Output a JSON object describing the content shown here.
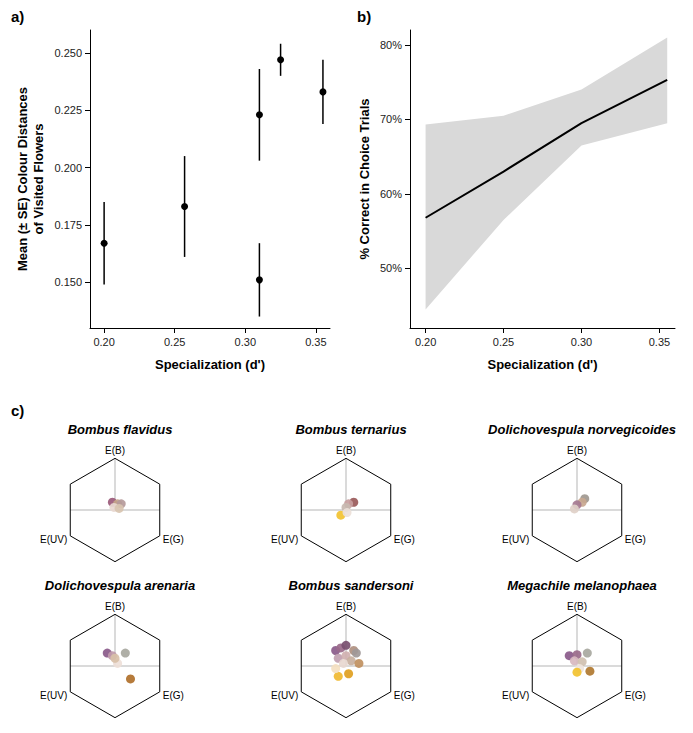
{
  "chart_data": [
    {
      "type": "scatter",
      "panel_label": "a)",
      "x": [
        0.2,
        0.257,
        0.31,
        0.31,
        0.325,
        0.355
      ],
      "y": [
        0.167,
        0.183,
        0.223,
        0.151,
        0.247,
        0.233
      ],
      "se": [
        0.018,
        0.022,
        0.02,
        0.016,
        0.007,
        0.014
      ],
      "color": "#000000",
      "marker": "circle",
      "xlabel": "Specialization (d')",
      "ylabel": "Mean (± SE) Colour Distances of Visited Flowers",
      "xlim": [
        0.19,
        0.36
      ],
      "ylim": [
        0.13,
        0.26
      ],
      "xticks": [
        {
          "value": 0.2,
          "label": "0.20"
        },
        {
          "value": 0.25,
          "label": "0.25"
        },
        {
          "value": 0.3,
          "label": "0.30"
        },
        {
          "value": 0.35,
          "label": "0.35"
        }
      ],
      "yticks": [
        {
          "value": 0.15,
          "label": "0.150"
        },
        {
          "value": 0.175,
          "label": "0.175"
        },
        {
          "value": 0.2,
          "label": "0.200"
        },
        {
          "value": 0.225,
          "label": "0.225"
        },
        {
          "value": 0.25,
          "label": "0.250"
        }
      ],
      "grid": false
    },
    {
      "type": "line",
      "panel_label": "b)",
      "x": [
        0.2,
        0.25,
        0.3,
        0.355
      ],
      "values": [
        56.8,
        63,
        69.5,
        75.3
      ],
      "lower": [
        44.5,
        56.5,
        66.5,
        69.5
      ],
      "upper": [
        69.3,
        70.5,
        74,
        81
      ],
      "color": "#000000",
      "marker": "none",
      "line_style": "solid",
      "xlabel": "Specialization (d')",
      "ylabel": "% Correct in Choice Trials",
      "xlim": [
        0.19,
        0.36
      ],
      "ylim": [
        42,
        82
      ],
      "xticks": [
        {
          "value": 0.2,
          "label": "0.20"
        },
        {
          "value": 0.25,
          "label": "0.25"
        },
        {
          "value": 0.3,
          "label": "0.30"
        },
        {
          "value": 0.35,
          "label": "0.35"
        }
      ],
      "yticks": [
        {
          "value": 50,
          "label": "50%"
        },
        {
          "value": 60,
          "label": "60%"
        },
        {
          "value": 70,
          "label": "70%"
        },
        {
          "value": 80,
          "label": "80%"
        }
      ],
      "grid": false
    },
    {
      "type": "hexagon",
      "panel_label": "c)",
      "title": "Bombus flavidus",
      "annotations": [
        "E(B)",
        "E(UV)",
        "E(G)"
      ],
      "x": [
        -0.05,
        0.05,
        0.12,
        -0.02,
        0.08
      ],
      "y": [
        0.15,
        0.12,
        0.12,
        0.05,
        0.03
      ],
      "colors": [
        "#9b5a7a",
        "#c4a58a",
        "#b59a9a",
        "#e8d8d0",
        "#d8c4b0"
      ],
      "marker": "circle",
      "xlim": [
        -1.2,
        1.2
      ],
      "ylim": [
        -1.2,
        1.2
      ],
      "tick_labels": false
    },
    {
      "type": "hexagon",
      "title": "Bombus ternarius",
      "annotations": [
        "E(B)",
        "E(UV)",
        "E(G)"
      ],
      "x": [
        0.15,
        0.05,
        0.0,
        -0.1,
        0.02
      ],
      "y": [
        0.15,
        0.12,
        0.05,
        -0.1,
        -0.05
      ],
      "colors": [
        "#9a5a5a",
        "#c8a0a0",
        "#c8b8b0",
        "#f2c230",
        "#ece0d8"
      ],
      "marker": "circle",
      "xlim": [
        -1.2,
        1.2
      ],
      "ylim": [
        -1.2,
        1.2
      ],
      "tick_labels": false
    },
    {
      "type": "hexagon",
      "title": "Dolichovespula norvegicoides",
      "annotations": [
        "E(B)",
        "E(UV)",
        "E(G)"
      ],
      "x": [
        0.15,
        0.1,
        0.0,
        -0.05
      ],
      "y": [
        0.22,
        0.15,
        0.1,
        0.02
      ],
      "colors": [
        "#a09890",
        "#c9a890",
        "#a57890",
        "#e0d0c8"
      ],
      "marker": "circle",
      "xlim": [
        -1.2,
        1.2
      ],
      "ylim": [
        -1.2,
        1.2
      ],
      "tick_labels": false
    },
    {
      "type": "hexagon",
      "title": "Dolichovespula arenaria",
      "annotations": [
        "E(B)",
        "E(UV)",
        "E(G)"
      ],
      "x": [
        -0.15,
        -0.05,
        0.2,
        0.05,
        0.0,
        0.3
      ],
      "y": [
        0.25,
        0.2,
        0.25,
        0.05,
        0.15,
        -0.25
      ],
      "colors": [
        "#8a5a8a",
        "#c09aaa",
        "#a8a8a0",
        "#eee0d8",
        "#d8c0a8",
        "#b0702a"
      ],
      "marker": "circle",
      "xlim": [
        -1.2,
        1.2
      ],
      "ylim": [
        -1.2,
        1.2
      ],
      "tick_labels": false
    },
    {
      "type": "hexagon",
      "title": "Bombus sandersoni",
      "annotations": [
        "E(B)",
        "E(UV)",
        "E(G)"
      ],
      "x": [
        -0.2,
        -0.1,
        0.0,
        0.15,
        0.2,
        -0.15,
        0.0,
        0.1,
        -0.05,
        0.25,
        -0.15,
        0.05,
        -0.2
      ],
      "y": [
        0.3,
        0.35,
        0.4,
        0.3,
        0.25,
        0.15,
        0.2,
        0.1,
        0.05,
        0.05,
        -0.2,
        -0.15,
        -0.05
      ],
      "colors": [
        "#8a5a8a",
        "#9a6a8a",
        "#7a5070",
        "#b09080",
        "#a09898",
        "#c0a0b0",
        "#d0b0b0",
        "#c8b0a0",
        "#e8d8d0",
        "#c09060",
        "#f0b830",
        "#e0a020",
        "#f4e0c0"
      ],
      "marker": "circle",
      "xlim": [
        -1.2,
        1.2
      ],
      "ylim": [
        -1.2,
        1.2
      ],
      "tick_labels": false
    },
    {
      "type": "hexagon",
      "title": "Megachile melanophaea",
      "annotations": [
        "E(B)",
        "E(UV)",
        "E(G)"
      ],
      "x": [
        -0.15,
        0.0,
        0.2,
        -0.05,
        0.1,
        0.05,
        0.0,
        0.25
      ],
      "y": [
        0.2,
        0.22,
        0.25,
        0.1,
        0.08,
        -0.05,
        -0.12,
        -0.1
      ],
      "colors": [
        "#8a5a8a",
        "#9a6a8a",
        "#a8a8a0",
        "#d8b8c0",
        "#d0c0b0",
        "#efe4dc",
        "#f2c230",
        "#b07830"
      ],
      "marker": "circle",
      "xlim": [
        -1.2,
        1.2
      ],
      "ylim": [
        -1.2,
        1.2
      ],
      "tick_labels": false
    }
  ]
}
